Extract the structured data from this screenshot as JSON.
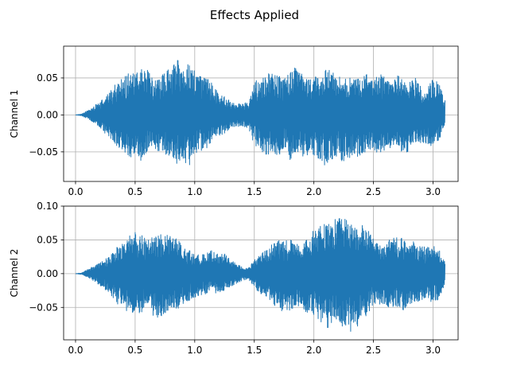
{
  "figure": {
    "title": "Effects Applied"
  },
  "colors": {
    "series": "#1f77b4",
    "grid": "#b0b0b0",
    "axes": "#000000"
  },
  "chart_data": [
    {
      "type": "line",
      "ylabel": "Channel 1",
      "xlim": [
        -0.1,
        3.21
      ],
      "ylim": [
        -0.09,
        0.093
      ],
      "xticks": [
        "0.0",
        "0.5",
        "1.0",
        "1.5",
        "2.0",
        "2.5",
        "3.0"
      ],
      "yticks": [
        "0.05",
        "0.00",
        "−0.05"
      ],
      "grid": true,
      "series": [
        {
          "x": [
            0.0,
            0.05,
            0.1,
            0.15,
            0.2,
            0.25,
            0.3,
            0.35,
            0.4,
            0.45,
            0.5,
            0.55,
            0.6,
            0.65,
            0.7,
            0.75,
            0.8,
            0.85,
            0.9,
            0.95,
            1.0,
            1.05,
            1.1,
            1.15,
            1.2,
            1.25,
            1.3,
            1.35,
            1.4,
            1.45,
            1.5,
            1.55,
            1.6,
            1.65,
            1.7,
            1.75,
            1.8,
            1.85,
            1.9,
            1.95,
            2.0,
            2.05,
            2.1,
            2.15,
            2.2,
            2.25,
            2.3,
            2.35,
            2.4,
            2.45,
            2.5,
            2.55,
            2.6,
            2.65,
            2.7,
            2.75,
            2.8,
            2.85,
            2.9,
            2.95,
            3.0,
            3.05,
            3.1
          ],
          "upper": [
            0.0,
            0.001,
            0.006,
            0.011,
            0.018,
            0.024,
            0.034,
            0.045,
            0.052,
            0.058,
            0.055,
            0.062,
            0.063,
            0.048,
            0.05,
            0.058,
            0.065,
            0.076,
            0.065,
            0.07,
            0.06,
            0.055,
            0.05,
            0.045,
            0.03,
            0.025,
            0.02,
            0.016,
            0.015,
            0.02,
            0.045,
            0.05,
            0.055,
            0.06,
            0.055,
            0.048,
            0.06,
            0.066,
            0.055,
            0.05,
            0.05,
            0.055,
            0.062,
            0.06,
            0.05,
            0.06,
            0.052,
            0.048,
            0.052,
            0.055,
            0.045,
            0.058,
            0.05,
            0.04,
            0.055,
            0.048,
            0.045,
            0.05,
            0.038,
            0.035,
            0.05,
            0.045,
            0.02
          ],
          "lower": [
            0.0,
            -0.001,
            -0.005,
            -0.01,
            -0.016,
            -0.026,
            -0.036,
            -0.045,
            -0.048,
            -0.06,
            -0.05,
            -0.065,
            -0.055,
            -0.045,
            -0.05,
            -0.06,
            -0.055,
            -0.066,
            -0.06,
            -0.07,
            -0.055,
            -0.05,
            -0.045,
            -0.04,
            -0.03,
            -0.025,
            -0.02,
            -0.016,
            -0.015,
            -0.02,
            -0.04,
            -0.048,
            -0.055,
            -0.05,
            -0.058,
            -0.045,
            -0.062,
            -0.05,
            -0.06,
            -0.055,
            -0.055,
            -0.06,
            -0.07,
            -0.062,
            -0.055,
            -0.067,
            -0.058,
            -0.055,
            -0.06,
            -0.045,
            -0.05,
            -0.055,
            -0.048,
            -0.045,
            -0.04,
            -0.055,
            -0.048,
            -0.04,
            -0.04,
            -0.038,
            -0.045,
            -0.035,
            -0.015
          ]
        }
      ]
    },
    {
      "type": "line",
      "ylabel": "Channel 2",
      "xlim": [
        -0.1,
        3.21
      ],
      "ylim": [
        -0.098,
        0.1
      ],
      "xticks": [
        "0.0",
        "0.5",
        "1.0",
        "1.5",
        "2.0",
        "2.5",
        "3.0"
      ],
      "yticks": [
        "0.10",
        "0.05",
        "0.00",
        "−0.05"
      ],
      "grid": true,
      "series": [
        {
          "x": [
            0.0,
            0.05,
            0.1,
            0.15,
            0.2,
            0.25,
            0.3,
            0.35,
            0.4,
            0.45,
            0.5,
            0.55,
            0.6,
            0.65,
            0.7,
            0.75,
            0.8,
            0.85,
            0.9,
            0.95,
            1.0,
            1.05,
            1.1,
            1.15,
            1.2,
            1.25,
            1.3,
            1.35,
            1.4,
            1.45,
            1.5,
            1.55,
            1.6,
            1.65,
            1.7,
            1.75,
            1.8,
            1.85,
            1.9,
            1.95,
            2.0,
            2.05,
            2.1,
            2.15,
            2.2,
            2.25,
            2.3,
            2.35,
            2.4,
            2.45,
            2.5,
            2.55,
            2.6,
            2.65,
            2.7,
            2.75,
            2.8,
            2.85,
            2.9,
            2.95,
            3.0,
            3.05,
            3.1
          ],
          "upper": [
            0.0,
            0.001,
            0.006,
            0.011,
            0.016,
            0.022,
            0.03,
            0.04,
            0.048,
            0.058,
            0.062,
            0.06,
            0.05,
            0.055,
            0.06,
            0.055,
            0.062,
            0.05,
            0.045,
            0.035,
            0.03,
            0.028,
            0.032,
            0.035,
            0.028,
            0.03,
            0.02,
            0.015,
            0.01,
            0.008,
            0.02,
            0.03,
            0.035,
            0.045,
            0.05,
            0.048,
            0.052,
            0.045,
            0.04,
            0.055,
            0.065,
            0.07,
            0.075,
            0.082,
            0.08,
            0.088,
            0.07,
            0.08,
            0.075,
            0.065,
            0.055,
            0.045,
            0.04,
            0.055,
            0.06,
            0.05,
            0.045,
            0.05,
            0.04,
            0.04,
            0.045,
            0.04,
            0.018
          ],
          "lower": [
            0.0,
            -0.001,
            -0.005,
            -0.011,
            -0.017,
            -0.024,
            -0.032,
            -0.045,
            -0.05,
            -0.06,
            -0.055,
            -0.06,
            -0.05,
            -0.062,
            -0.068,
            -0.06,
            -0.052,
            -0.055,
            -0.045,
            -0.04,
            -0.035,
            -0.032,
            -0.03,
            -0.028,
            -0.03,
            -0.025,
            -0.02,
            -0.015,
            -0.01,
            -0.008,
            -0.02,
            -0.032,
            -0.04,
            -0.045,
            -0.05,
            -0.06,
            -0.055,
            -0.048,
            -0.05,
            -0.06,
            -0.065,
            -0.07,
            -0.085,
            -0.08,
            -0.075,
            -0.08,
            -0.088,
            -0.082,
            -0.07,
            -0.06,
            -0.045,
            -0.045,
            -0.055,
            -0.05,
            -0.05,
            -0.055,
            -0.045,
            -0.048,
            -0.04,
            -0.035,
            -0.045,
            -0.04,
            -0.015
          ]
        }
      ]
    }
  ]
}
